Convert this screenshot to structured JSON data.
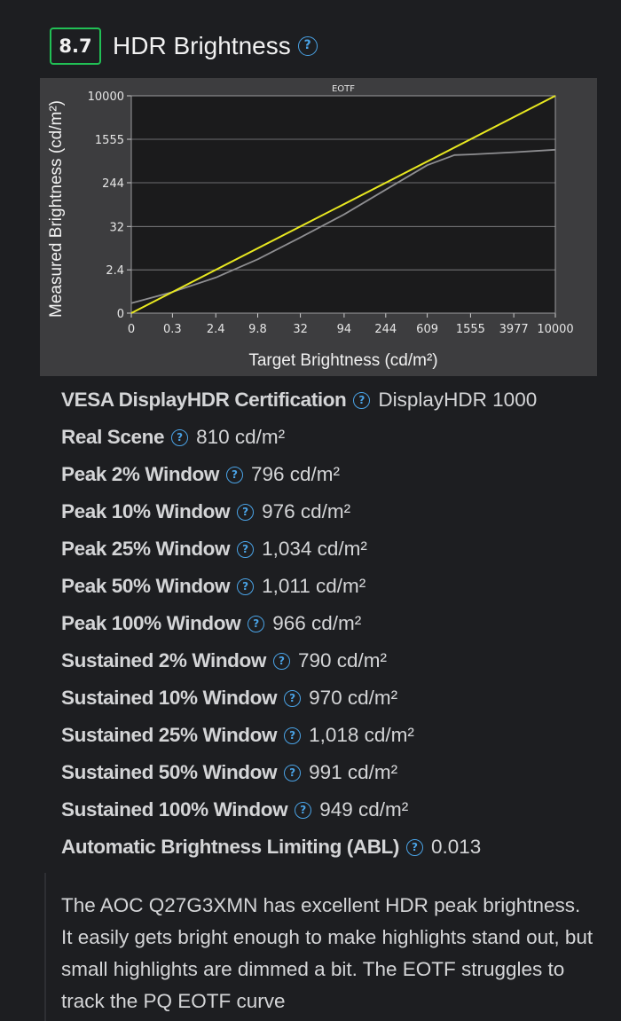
{
  "header": {
    "score": "8.7",
    "title": "HDR Brightness",
    "help_glyph": "?",
    "score_color": "#21c055",
    "help_color": "#4aa3e6"
  },
  "chart_data": {
    "type": "line",
    "title": "EOTF",
    "xlabel": "Target Brightness (cd/m²)",
    "ylabel": "Measured Brightness (cd/m²)",
    "x_tick_labels": [
      "0",
      "0.3",
      "2.4",
      "9.8",
      "32",
      "94",
      "244",
      "609",
      "1555",
      "3977",
      "10000"
    ],
    "y_tick_labels": [
      "0",
      "2.4",
      "32",
      "244",
      "1555",
      "10000"
    ],
    "scale": "pq",
    "xlim": [
      0,
      10000
    ],
    "ylim": [
      0,
      10000
    ],
    "grid": "horizontal",
    "series": [
      {
        "color": "#e8e820",
        "x": [
          0,
          10000
        ],
        "y": [
          0,
          10000
        ]
      },
      {
        "color": "#8e8e91",
        "x": [
          0,
          0.3,
          2.4,
          9.8,
          32,
          94,
          244,
          609,
          1100,
          1555,
          3977,
          10000
        ],
        "y": [
          0.05,
          0.3,
          1.3,
          5,
          18,
          58,
          180,
          520,
          800,
          820,
          900,
          1000
        ]
      }
    ]
  },
  "properties": [
    {
      "label": "VESA DisplayHDR Certification",
      "value": "DisplayHDR 1000"
    },
    {
      "label": "Real Scene",
      "value": "810 cd/m²"
    },
    {
      "label": "Peak 2% Window",
      "value": "796 cd/m²"
    },
    {
      "label": "Peak 10% Window",
      "value": "976 cd/m²"
    },
    {
      "label": "Peak 25% Window",
      "value": "1,034 cd/m²"
    },
    {
      "label": "Peak 50% Window",
      "value": "1,011 cd/m²"
    },
    {
      "label": "Peak 100% Window",
      "value": "966 cd/m²"
    },
    {
      "label": "Sustained 2% Window",
      "value": "790 cd/m²"
    },
    {
      "label": "Sustained 10% Window",
      "value": "970 cd/m²"
    },
    {
      "label": "Sustained 25% Window",
      "value": "1,018 cd/m²"
    },
    {
      "label": "Sustained 50% Window",
      "value": "991 cd/m²"
    },
    {
      "label": "Sustained 100% Window",
      "value": "949 cd/m²"
    },
    {
      "label": "Automatic Brightness Limiting (ABL)",
      "value": "0.013"
    }
  ],
  "description": "The AOC Q27G3XMN has excellent HDR peak brightness. It easily gets bright enough to make highlights stand out, but small highlights are dimmed a bit. The EOTF struggles to track the PQ EOTF curve"
}
